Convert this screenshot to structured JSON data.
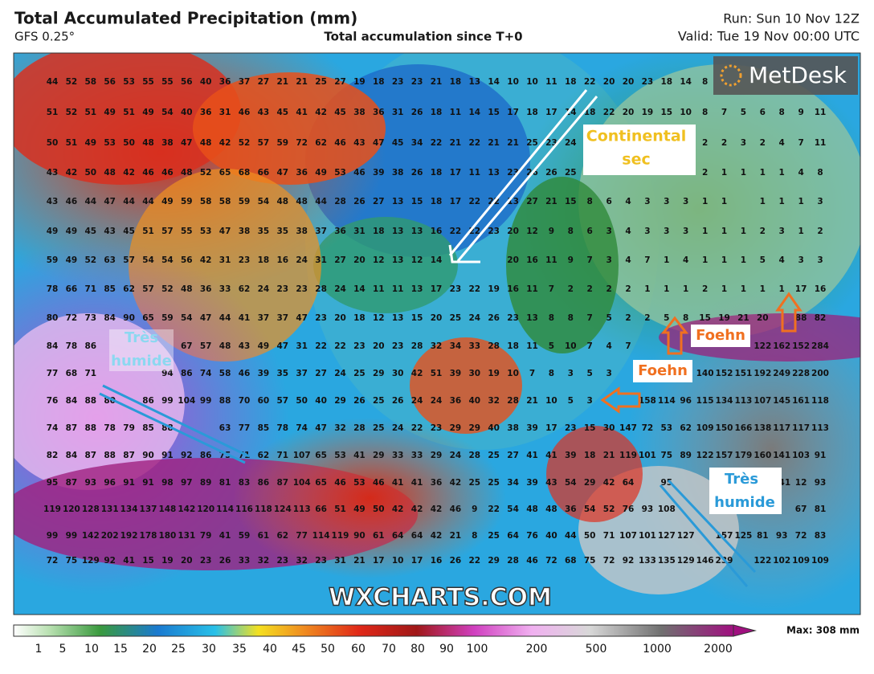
{
  "header": {
    "title": "Total Accumulated Precipitation (mm)",
    "model": "GFS 0.25°",
    "subtitle": "Total accumulation since T+0",
    "run": "Run: Sun 10 Nov 12Z",
    "valid": "Valid: Tue 19 Nov 00:00 UTC"
  },
  "logo": "MetDesk",
  "watermark": "WXCHARTS.COM",
  "annotations": {
    "continental": [
      "Continental",
      "sec"
    ],
    "humide_west": [
      "Très",
      "humide"
    ],
    "humide_east": [
      "Très",
      "humide"
    ],
    "foehn_north": "Foehn",
    "foehn_south": "Foehn"
  },
  "colorbar": {
    "labels": [
      "1",
      "5",
      "10",
      "15",
      "20",
      "25",
      "30",
      "35",
      "40",
      "45",
      "50",
      "60",
      "70",
      "80",
      "90",
      "100",
      "200",
      "500",
      "1000",
      "2000"
    ],
    "max": "Max: 308 mm"
  },
  "grid": {
    "rows": [
      [
        44,
        52,
        58,
        56,
        53,
        55,
        55,
        56,
        40,
        36,
        37,
        27,
        21,
        21,
        25,
        27,
        19,
        18,
        23,
        23,
        21,
        18,
        13,
        14,
        10,
        10,
        11,
        18,
        22,
        20,
        20,
        23,
        18,
        14,
        8
      ],
      [
        51,
        52,
        51,
        49,
        51,
        49,
        54,
        40,
        36,
        31,
        46,
        43,
        45,
        41,
        42,
        45,
        38,
        36,
        31,
        26,
        18,
        11,
        14,
        15,
        17,
        18,
        17,
        14,
        18,
        22,
        20,
        19,
        15,
        10,
        8,
        7,
        5,
        6,
        8,
        9,
        11
      ],
      [
        50,
        51,
        49,
        53,
        50,
        48,
        38,
        47,
        48,
        42,
        52,
        57,
        59,
        72,
        62,
        46,
        43,
        47,
        45,
        34,
        22,
        21,
        22,
        21,
        21,
        25,
        23,
        24,
        null,
        null,
        null,
        null,
        null,
        null,
        2,
        2,
        3,
        2,
        4,
        7,
        11
      ],
      [
        43,
        42,
        50,
        48,
        42,
        46,
        46,
        48,
        52,
        65,
        68,
        66,
        47,
        36,
        49,
        53,
        46,
        39,
        38,
        26,
        18,
        17,
        11,
        13,
        23,
        26,
        26,
        25,
        null,
        null,
        null,
        null,
        null,
        null,
        2,
        1,
        1,
        1,
        1,
        4,
        8
      ],
      [
        43,
        46,
        44,
        47,
        44,
        44,
        49,
        59,
        58,
        58,
        59,
        54,
        48,
        48,
        44,
        28,
        26,
        27,
        13,
        15,
        18,
        17,
        22,
        22,
        13,
        27,
        21,
        15,
        8,
        6,
        4,
        3,
        3,
        3,
        1,
        1,
        null,
        1,
        1,
        1,
        3
      ],
      [
        49,
        49,
        45,
        43,
        45,
        51,
        57,
        55,
        53,
        47,
        38,
        35,
        35,
        38,
        37,
        36,
        31,
        18,
        13,
        13,
        16,
        22,
        22,
        23,
        20,
        12,
        9,
        8,
        6,
        3,
        4,
        3,
        3,
        3,
        1,
        1,
        1,
        2,
        3,
        1,
        2
      ],
      [
        59,
        49,
        52,
        63,
        57,
        54,
        54,
        56,
        42,
        31,
        23,
        18,
        16,
        24,
        31,
        27,
        20,
        12,
        13,
        12,
        14,
        null,
        null,
        null,
        20,
        16,
        11,
        9,
        7,
        3,
        4,
        7,
        1,
        4,
        1,
        1,
        1,
        5,
        4,
        3,
        3
      ],
      [
        78,
        66,
        71,
        85,
        62,
        57,
        52,
        48,
        36,
        33,
        62,
        24,
        23,
        23,
        28,
        24,
        14,
        11,
        11,
        13,
        17,
        23,
        22,
        19,
        16,
        11,
        7,
        2,
        2,
        2,
        2,
        1,
        1,
        1,
        2,
        1,
        1,
        1,
        1,
        17,
        16
      ],
      [
        80,
        72,
        73,
        84,
        90,
        65,
        59,
        54,
        47,
        44,
        41,
        37,
        37,
        47,
        23,
        20,
        18,
        12,
        13,
        15,
        20,
        25,
        24,
        26,
        23,
        13,
        8,
        8,
        7,
        5,
        2,
        2,
        5,
        8,
        15,
        19,
        21,
        20,
        null,
        88,
        82
      ],
      [
        84,
        78,
        86,
        null,
        null,
        null,
        null,
        67,
        57,
        48,
        43,
        49,
        47,
        31,
        22,
        22,
        23,
        20,
        23,
        28,
        32,
        34,
        33,
        28,
        18,
        11,
        5,
        10,
        7,
        4,
        7,
        null,
        null,
        null,
        null,
        null,
        null,
        122,
        162,
        152,
        284
      ],
      [
        77,
        68,
        71,
        null,
        null,
        null,
        94,
        86,
        74,
        58,
        46,
        39,
        35,
        37,
        27,
        24,
        25,
        29,
        30,
        42,
        51,
        39,
        30,
        19,
        10,
        7,
        8,
        3,
        5,
        3,
        null,
        null,
        null,
        null,
        140,
        152,
        151,
        192,
        249,
        228,
        200
      ],
      [
        76,
        84,
        88,
        80,
        null,
        86,
        99,
        104,
        99,
        88,
        70,
        60,
        57,
        50,
        40,
        29,
        26,
        25,
        26,
        24,
        24,
        36,
        40,
        32,
        28,
        21,
        10,
        5,
        3,
        null,
        null,
        158,
        114,
        96,
        115,
        134,
        113,
        107,
        145,
        161,
        118
      ],
      [
        74,
        87,
        88,
        78,
        79,
        85,
        88,
        null,
        null,
        63,
        77,
        85,
        78,
        74,
        47,
        32,
        28,
        25,
        24,
        22,
        23,
        29,
        29,
        40,
        38,
        39,
        17,
        23,
        15,
        30,
        147,
        72,
        53,
        62,
        109,
        150,
        166,
        138,
        117,
        117,
        113
      ],
      [
        82,
        84,
        87,
        88,
        87,
        90,
        91,
        92,
        86,
        75,
        71,
        62,
        71,
        107,
        65,
        53,
        41,
        29,
        33,
        33,
        29,
        24,
        28,
        25,
        27,
        41,
        41,
        39,
        18,
        21,
        119,
        101,
        75,
        89,
        122,
        157,
        179,
        160,
        141,
        103,
        91
      ],
      [
        95,
        87,
        93,
        96,
        91,
        91,
        98,
        97,
        89,
        81,
        83,
        86,
        87,
        104,
        65,
        46,
        53,
        46,
        41,
        41,
        36,
        42,
        25,
        25,
        34,
        39,
        43,
        54,
        29,
        42,
        64,
        null,
        95,
        null,
        null,
        null,
        null,
        null,
        141,
        12,
        93
      ],
      [
        119,
        120,
        128,
        131,
        134,
        137,
        148,
        142,
        120,
        114,
        116,
        118,
        124,
        113,
        66,
        51,
        49,
        50,
        42,
        42,
        42,
        46,
        9,
        22,
        54,
        48,
        48,
        36,
        54,
        52,
        76,
        93,
        108,
        null,
        null,
        null,
        null,
        null,
        null,
        67,
        81
      ],
      [
        99,
        99,
        142,
        202,
        192,
        178,
        180,
        131,
        79,
        41,
        59,
        61,
        62,
        77,
        114,
        119,
        90,
        61,
        64,
        64,
        42,
        21,
        8,
        25,
        64,
        76,
        40,
        44,
        50,
        71,
        107,
        101,
        127,
        127,
        null,
        157,
        125,
        81,
        93,
        72,
        83
      ],
      [
        72,
        75,
        129,
        92,
        41,
        15,
        19,
        20,
        23,
        26,
        33,
        32,
        23,
        32,
        23,
        31,
        21,
        17,
        10,
        17,
        16,
        26,
        22,
        29,
        28,
        46,
        72,
        68,
        75,
        72,
        92,
        133,
        135,
        129,
        146,
        239,
        null,
        122,
        102,
        109,
        109
      ]
    ]
  }
}
